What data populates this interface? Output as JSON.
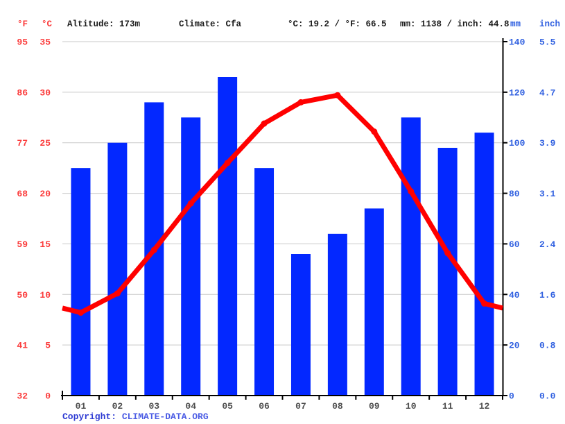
{
  "header": {
    "fahrenheit_label": "°F",
    "celsius_label": "°C",
    "altitude": "Altitude: 173m",
    "climate": "Climate: Cfa",
    "temperature_summary": "°C: 19.2 / °F: 66.5",
    "precipitation_summary": "mm: 1138 / inch: 44.8",
    "mm_label": "mm",
    "inch_label": "inch"
  },
  "axes": {
    "fahrenheit_ticks": [
      "95",
      "86",
      "77",
      "68",
      "59",
      "50",
      "41",
      "32"
    ],
    "celsius_ticks": [
      "35",
      "30",
      "25",
      "20",
      "15",
      "10",
      "5",
      "0"
    ],
    "mm_ticks": [
      "140",
      "120",
      "100",
      "80",
      "60",
      "40",
      "20",
      "0"
    ],
    "inch_ticks": [
      "5.5",
      "4.7",
      "3.9",
      "3.1",
      "2.4",
      "1.6",
      "0.8",
      "0.0"
    ]
  },
  "chart_data": {
    "type": "bar+line",
    "title": "Climate graph (climogram)",
    "categories": [
      "01",
      "02",
      "03",
      "04",
      "05",
      "06",
      "07",
      "08",
      "09",
      "10",
      "11",
      "12"
    ],
    "series": [
      {
        "name": "precipitation_mm",
        "type": "bar",
        "values": [
          90,
          100,
          116,
          110,
          126,
          90,
          56,
          64,
          74,
          110,
          98,
          104
        ]
      },
      {
        "name": "temperature_c",
        "type": "line",
        "values": [
          8.2,
          10.1,
          14.4,
          19.0,
          23.0,
          26.9,
          29.0,
          29.7,
          26.1,
          20.2,
          14.1,
          9.1
        ]
      }
    ],
    "temp_axis": {
      "min": 0,
      "max": 35,
      "step": 5,
      "unit": "°C"
    },
    "precip_axis": {
      "min": 0,
      "max": 140,
      "step": 20,
      "unit": "mm"
    },
    "grid": true,
    "legend": "none"
  },
  "colors": {
    "bar": "#0328ff",
    "line": "#ff0000",
    "grid": "#c9c9c9",
    "axis": "#000000",
    "temp_text": "#fb3b3b",
    "precip_text": "#3060e0",
    "month_text": "#4d4d4d"
  },
  "footer": {
    "copyright_label": "Copyright: ",
    "copyright_link": "CLIMATE-DATA.ORG"
  }
}
